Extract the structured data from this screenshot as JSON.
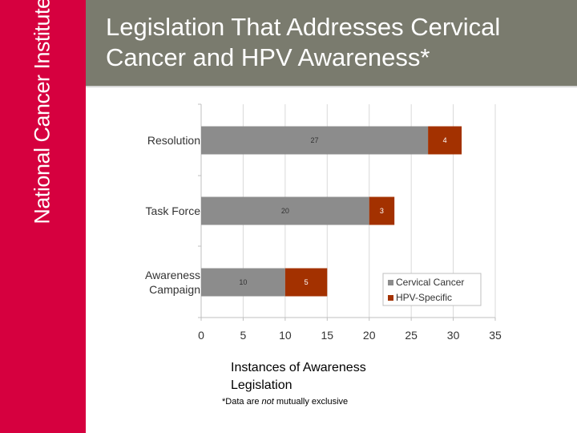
{
  "brand": {
    "name": "National Cancer Institute",
    "color": "#d6003f",
    "header_color": "#7a7b6e"
  },
  "slide": {
    "title_line1": "Legislation That Addresses Cervical",
    "title_line2": "Cancer and HPV Awareness*",
    "footnote_pre": "*Data are ",
    "footnote_em": "not",
    "footnote_post": " mutually exclusive"
  },
  "chart_data": {
    "type": "bar",
    "orientation": "horizontal",
    "stacked": true,
    "categories": [
      "Resolution",
      "Task Force",
      "Awareness Campaign"
    ],
    "category_lines": [
      [
        "Resolution"
      ],
      [
        "Task Force"
      ],
      [
        "Awareness",
        "Campaign"
      ]
    ],
    "series": [
      {
        "name": "Cervical Cancer",
        "values": [
          27,
          20,
          10
        ],
        "color": "#8c8c8c"
      },
      {
        "name": "HPV-Specific",
        "values": [
          4,
          3,
          5
        ],
        "color": "#a33100"
      }
    ],
    "xlim": [
      0,
      35
    ],
    "xticks": [
      0,
      5,
      10,
      15,
      20,
      25,
      30,
      35
    ],
    "xlabel_line1": "Instances of Awareness",
    "xlabel_line2": "Legislation",
    "grid": true,
    "legend": "bottom-right"
  }
}
